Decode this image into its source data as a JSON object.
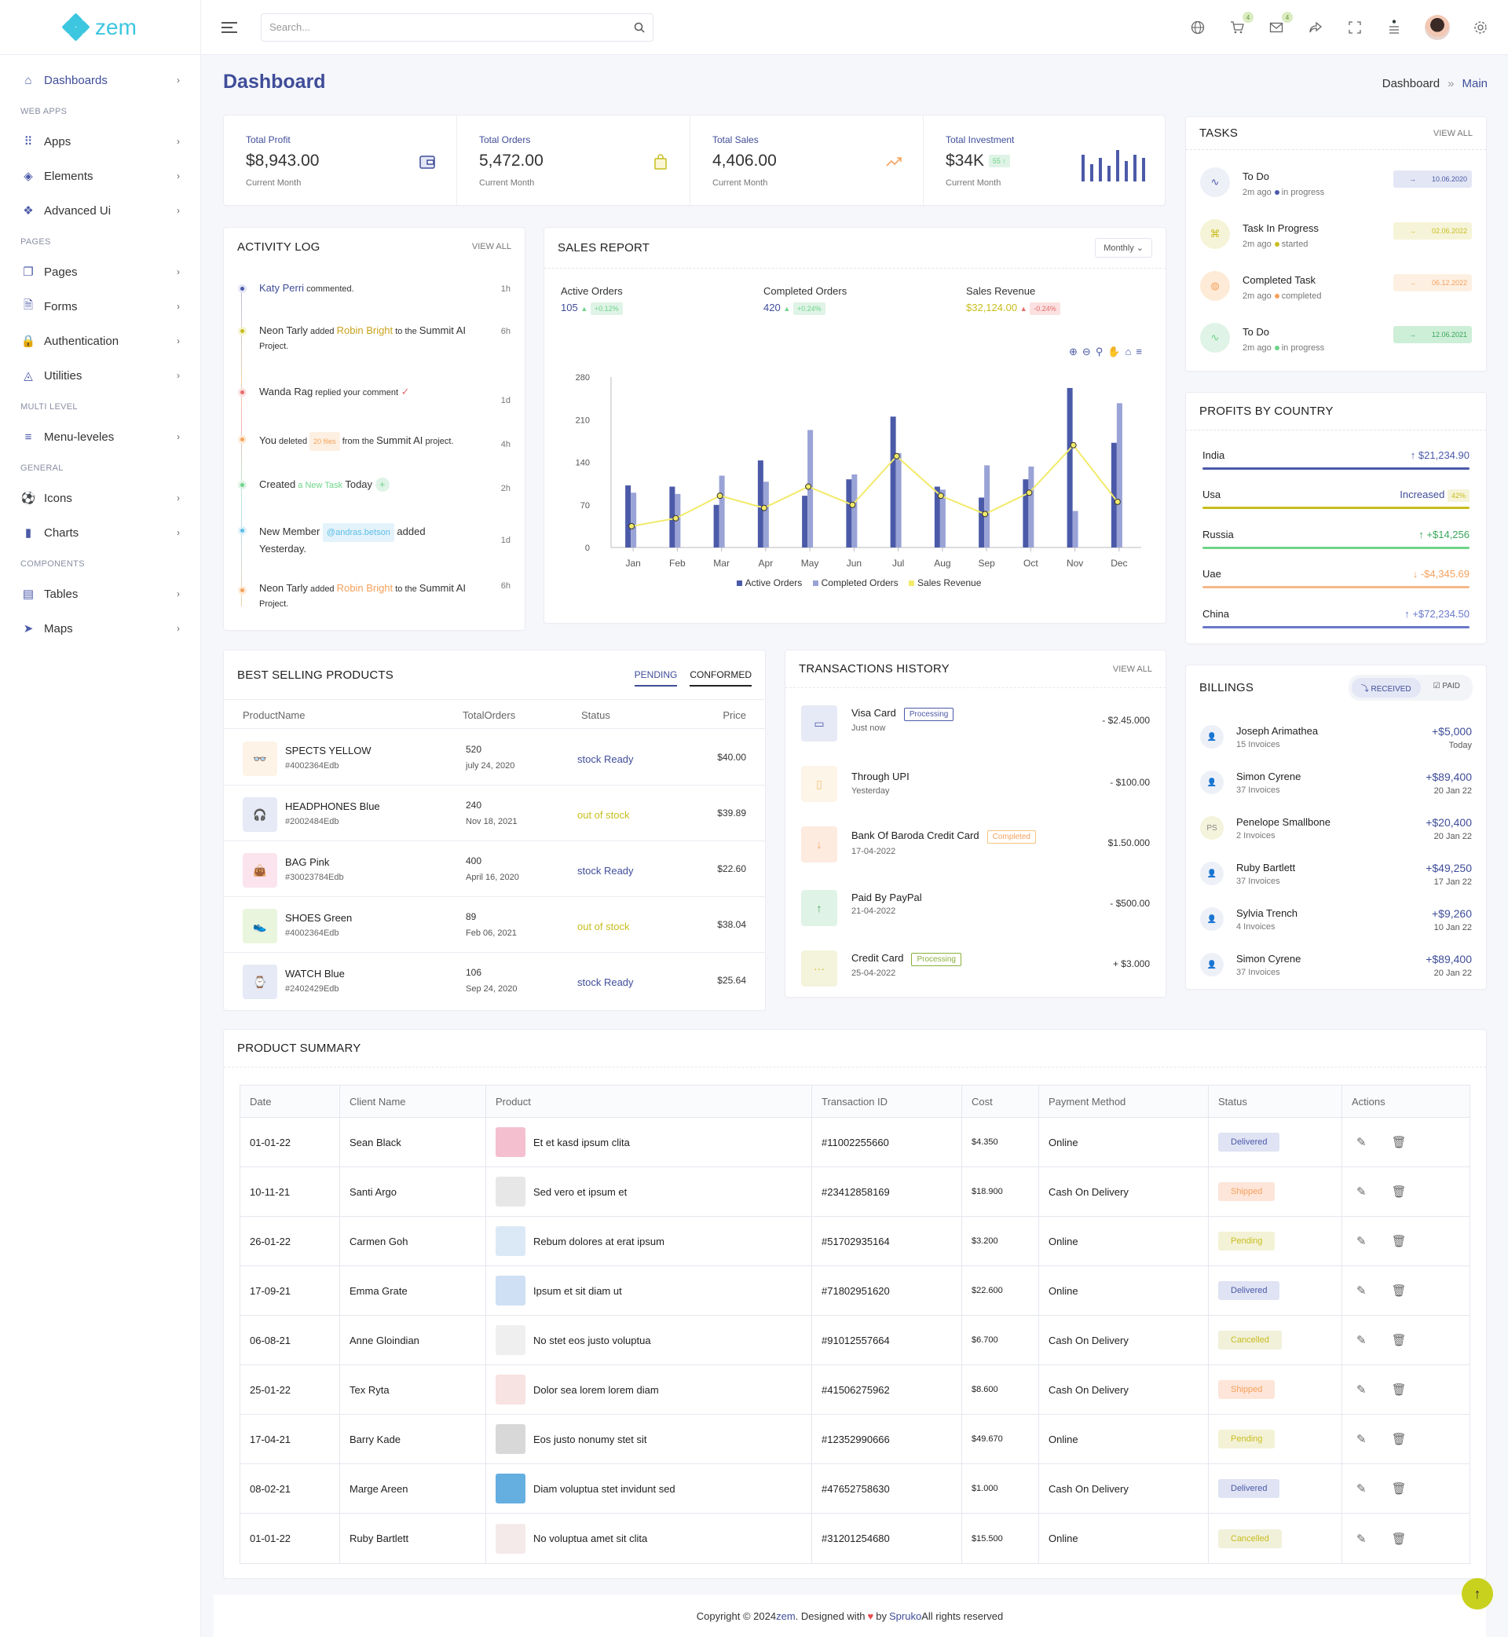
{
  "brand": {
    "name": "zem"
  },
  "colors": {
    "primary": "#3f4d99",
    "accent": "#3cc6e0",
    "green": "#6ed48a",
    "orange": "#f5a15c",
    "yellow": "#c8d11e"
  },
  "sidebar": {
    "sections": [
      {
        "title": "",
        "items": [
          {
            "label": "Dashboards",
            "icon": "home-icon"
          }
        ]
      },
      {
        "title": "WEB APPS",
        "items": [
          {
            "label": "Apps",
            "icon": "grid-dots-icon"
          },
          {
            "label": "Elements",
            "icon": "cube-icon"
          },
          {
            "label": "Advanced Ui",
            "icon": "layers-icon"
          }
        ]
      },
      {
        "title": "PAGES",
        "items": [
          {
            "label": "Pages",
            "icon": "pages-icon"
          },
          {
            "label": "Forms",
            "icon": "file-icon"
          },
          {
            "label": "Authentication",
            "icon": "lock-icon"
          },
          {
            "label": "Utilities",
            "icon": "shapes-icon"
          }
        ]
      },
      {
        "title": "MULTI LEVEL",
        "items": [
          {
            "label": "Menu-leveles",
            "icon": "menu-icon"
          }
        ]
      },
      {
        "title": "GENERAL",
        "items": [
          {
            "label": "Icons",
            "icon": "soccer-icon"
          },
          {
            "label": "Charts",
            "icon": "bar-chart-icon"
          }
        ]
      },
      {
        "title": "COMPONENTS",
        "items": [
          {
            "label": "Tables",
            "icon": "table-icon"
          },
          {
            "label": "Maps",
            "icon": "navigation-icon"
          }
        ]
      }
    ]
  },
  "topbar": {
    "search_placeholder": "Search...",
    "cart_count": "4",
    "mail_count": "4"
  },
  "page": {
    "title": "Dashboard",
    "breadcrumb": [
      "Dashboard",
      "»",
      "Main"
    ]
  },
  "stats": [
    {
      "label": "Total Profit",
      "value": "$8,943.00",
      "sub": "Current Month",
      "icon": "wallet-icon"
    },
    {
      "label": "Total Orders",
      "value": "5,472.00",
      "sub": "Current Month",
      "icon": "shopping-bag-icon"
    },
    {
      "label": "Total Sales",
      "value": "4,406.00",
      "sub": "Current Month",
      "icon": "trend-up-icon"
    },
    {
      "label": "Total Investment",
      "value": "$34K",
      "badge": "55 ↑",
      "sub": "Current Month",
      "icon": "mini-bars-icon"
    }
  ],
  "activity": {
    "title": "ACTIVITY LOG",
    "view_all": "VIEW ALL",
    "items": [
      {
        "a": "Katy Perri",
        "b": " commented.",
        "c": "",
        "time": "1h"
      },
      {
        "a": "Neon Tarly",
        "b": " added ",
        "c": "Robin Bright",
        "d": " to the ",
        "e": "Summit AI",
        "f": "Project.",
        "time": "6h"
      },
      {
        "a": "Wanda Rag",
        "b": " replied your comment",
        "time": "1d"
      },
      {
        "a": "You",
        "b": " deleted ",
        "c": "20 files",
        "d": " from the ",
        "e": "Summit AI",
        "f": " project.",
        "time": "4h"
      },
      {
        "a": "Created",
        "b": " a New Task",
        "c": " Today",
        "time": "2h"
      },
      {
        "a": "New Member",
        "b": "@andras.betson",
        "c": " added",
        "d": "Yesterday.",
        "time": "1d"
      },
      {
        "a": "Neon Tarly",
        "b": " added ",
        "c": "Robin Bright",
        "d": " to the ",
        "e": "Summit AI",
        "f": "Project.",
        "time": "6h"
      }
    ]
  },
  "sales_report": {
    "title": "SALES REPORT",
    "period": "Monthly",
    "kpis": [
      {
        "label": "Active Orders",
        "value": "105",
        "change": "+0.12%",
        "dir": "up"
      },
      {
        "label": "Completed Orders",
        "value": "420",
        "change": "+0.24%",
        "dir": "up"
      },
      {
        "label": "Sales Revenue",
        "value": "$32,124.00",
        "change": "-0.24%",
        "dir": "down"
      }
    ]
  },
  "chart_data": {
    "type": "bar",
    "categories": [
      "Jan",
      "Feb",
      "Mar",
      "Apr",
      "May",
      "Jun",
      "Jul",
      "Aug",
      "Sep",
      "Oct",
      "Nov",
      "Dec"
    ],
    "series": [
      {
        "name": "Active Orders",
        "type": "bar",
        "color": "#4b5aa8",
        "values": [
          102,
          100,
          70,
          143,
          85,
          112,
          215,
          100,
          82,
          112,
          262,
          172
        ]
      },
      {
        "name": "Completed Orders",
        "type": "bar",
        "color": "#9aa3d6",
        "values": [
          90,
          88,
          118,
          108,
          193,
          120,
          155,
          95,
          135,
          133,
          60,
          237
        ]
      },
      {
        "name": "Sales Revenue",
        "type": "line",
        "color": "#f2ea6a",
        "values": [
          35,
          48,
          85,
          65,
          100,
          70,
          150,
          85,
          55,
          90,
          168,
          75
        ]
      }
    ],
    "ylim": [
      0,
      280
    ],
    "yticks": [
      0,
      70,
      140,
      210,
      280
    ],
    "legend": "bottom"
  },
  "tasks": {
    "title": "TASKS",
    "view_all": "VIEW ALL",
    "items": [
      {
        "name": "To Do",
        "meta": "2m ago",
        "status": "in progress",
        "date": "10.06.2020"
      },
      {
        "name": "Task In Progress",
        "meta": "2m ago",
        "status": "started",
        "date": "02.06.2022"
      },
      {
        "name": "Completed Task",
        "meta": "2m ago",
        "status": "completed",
        "date": "06.12.2022"
      },
      {
        "name": "To Do",
        "meta": "2m ago",
        "status": "in progress",
        "date": "12.06.2021"
      }
    ]
  },
  "profits": {
    "title": "PROFITS BY COUNTRY",
    "items": [
      {
        "country": "India",
        "value": "$21,234.90",
        "arrow": "↑"
      },
      {
        "country": "Usa",
        "value": "Increased",
        "badge": "42%"
      },
      {
        "country": "Russia",
        "value": "+$14,256",
        "arrow": "↑"
      },
      {
        "country": "Uae",
        "value": "-$4,345.69",
        "arrow": "↓"
      },
      {
        "country": "China",
        "value": "+$72,234.50",
        "arrow": "↑"
      }
    ]
  },
  "best_selling": {
    "title": "BEST SELLING PRODUCTS",
    "tabs": [
      "PENDING",
      "CONFORMED"
    ],
    "columns": [
      "ProductName",
      "TotalOrders",
      "Status",
      "Price"
    ],
    "rows": [
      {
        "name": "SPECTS YELLOW",
        "code": "#4002364Edb",
        "orders": "520",
        "date": "july 24, 2020",
        "status": "stock Ready",
        "price": "$40.00"
      },
      {
        "name": "HEADPHONES Blue",
        "code": "#2002484Edb",
        "orders": "240",
        "date": "Nov 18, 2021",
        "status": "out of stock",
        "price": "$39.89"
      },
      {
        "name": "BAG Pink",
        "code": "#30023784Edb",
        "orders": "400",
        "date": "April 16, 2020",
        "status": "stock Ready",
        "price": "$22.60"
      },
      {
        "name": "SHOES Green",
        "code": "#4002364Edb",
        "orders": "89",
        "date": "Feb 06, 2021",
        "status": "out of stock",
        "price": "$38.04"
      },
      {
        "name": "WATCH Blue",
        "code": "#2402429Edb",
        "orders": "106",
        "date": "Sep 24, 2020",
        "status": "stock Ready",
        "price": "$25.64"
      }
    ]
  },
  "transactions": {
    "title": "TRANSACTIONS HISTORY",
    "view_all": "VIEW ALL",
    "items": [
      {
        "name": "Visa Card",
        "tag": "Processing",
        "date": "Just now",
        "amount": "- $2.45.000"
      },
      {
        "name": "Through UPI",
        "tag": "",
        "date": "Yesterday",
        "amount": "- $100.00"
      },
      {
        "name": "Bank Of Baroda Credit Card",
        "tag": "Completed",
        "date": "17-04-2022",
        "amount": "$1.50.000"
      },
      {
        "name": "Paid By PayPal",
        "tag": "",
        "date": "21-04-2022",
        "amount": "- $500.00"
      },
      {
        "name": "Credit Card",
        "tag": "Processing",
        "date": "25-04-2022",
        "amount": "+ $3.000"
      }
    ]
  },
  "billings": {
    "title": "BILLINGS",
    "tabs": [
      "RECEIVED",
      "PAID"
    ],
    "items": [
      {
        "name": "Joseph Arimathea",
        "invoices": "15 Invoices",
        "amount": "+$5,000",
        "date": "Today"
      },
      {
        "name": "Simon Cyrene",
        "invoices": "37 Invoices",
        "amount": "+$89,400",
        "date": "20 Jan 22"
      },
      {
        "name": "Penelope Smallbone",
        "invoices": "2 Invoices",
        "amount": "+$20,400",
        "date": "20 Jan 22",
        "initials": "PS"
      },
      {
        "name": "Ruby Bartlett",
        "invoices": "37 Invoices",
        "amount": "+$49,250",
        "date": "17 Jan 22"
      },
      {
        "name": "Sylvia Trench",
        "invoices": "4 Invoices",
        "amount": "+$9,260",
        "date": "10 Jan 22"
      },
      {
        "name": "Simon Cyrene",
        "invoices": "37 Invoices",
        "amount": "+$89,400",
        "date": "20 Jan 22"
      }
    ]
  },
  "product_summary": {
    "title": "PRODUCT SUMMARY",
    "columns": [
      "Date",
      "Client Name",
      "Product",
      "Transaction ID",
      "Cost",
      "Payment Method",
      "Status",
      "Actions"
    ],
    "rows": [
      {
        "date": "01-01-22",
        "client": "Sean Black",
        "product": "Et et kasd ipsum clita",
        "txid": "#11002255660",
        "cost": "$4.350",
        "method": "Online",
        "status": "Delivered"
      },
      {
        "date": "10-11-21",
        "client": "Santi Argo",
        "product": "Sed vero et ipsum et",
        "txid": "#23412858169",
        "cost": "$18.900",
        "method": "Cash On Delivery",
        "status": "Shipped"
      },
      {
        "date": "26-01-22",
        "client": "Carmen Goh",
        "product": "Rebum dolores at erat ipsum",
        "txid": "#51702935164",
        "cost": "$3.200",
        "method": "Online",
        "status": "Pending"
      },
      {
        "date": "17-09-21",
        "client": "Emma Grate",
        "product": "Ipsum et sit diam ut",
        "txid": "#71802951620",
        "cost": "$22.600",
        "method": "Online",
        "status": "Delivered"
      },
      {
        "date": "06-08-21",
        "client": "Anne Gloindian",
        "product": "No stet eos justo voluptua",
        "txid": "#91012557664",
        "cost": "$6.700",
        "method": "Cash On Delivery",
        "status": "Cancelled"
      },
      {
        "date": "25-01-22",
        "client": "Tex Ryta",
        "product": "Dolor sea lorem lorem diam",
        "txid": "#41506275962",
        "cost": "$8.600",
        "method": "Cash On Delivery",
        "status": "Shipped"
      },
      {
        "date": "17-04-21",
        "client": "Barry Kade",
        "product": "Eos justo nonumy stet sit",
        "txid": "#12352990666",
        "cost": "$49.670",
        "method": "Online",
        "status": "Pending"
      },
      {
        "date": "08-02-21",
        "client": "Marge Areen",
        "product": "Diam voluptua stet invidunt sed",
        "txid": "#47652758630",
        "cost": "$1.000",
        "method": "Cash On Delivery",
        "status": "Delivered"
      },
      {
        "date": "01-01-22",
        "client": "Ruby Bartlett",
        "product": "No voluptua amet sit clita",
        "txid": "#31201254680",
        "cost": "$15.500",
        "method": "Online",
        "status": "Cancelled"
      }
    ]
  },
  "footer": {
    "prefix": "Copyright © 2024 ",
    "brand": "zem",
    "mid": ". Designed with ",
    "by": " by ",
    "company": "Spruko",
    "suffix": " All rights reserved"
  }
}
